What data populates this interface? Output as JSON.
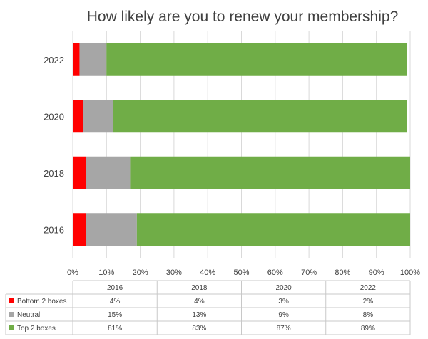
{
  "chart_data": {
    "type": "bar",
    "orientation": "horizontal",
    "stacked": true,
    "title": "How likely are you to renew your membership?",
    "categories": [
      "2016",
      "2018",
      "2020",
      "2022"
    ],
    "series": [
      {
        "name": "Bottom 2 boxes",
        "values": [
          4,
          4,
          3,
          2
        ],
        "labels": [
          "4%",
          "4%",
          "3%",
          "2%"
        ],
        "color": "#ff0000"
      },
      {
        "name": "Neutral",
        "values": [
          15,
          13,
          9,
          8
        ],
        "labels": [
          "15%",
          "13%",
          "9%",
          "8%"
        ],
        "color": "#a6a6a6"
      },
      {
        "name": "Top 2 boxes",
        "values": [
          81,
          83,
          87,
          89
        ],
        "labels": [
          "81%",
          "83%",
          "87%",
          "89%"
        ],
        "color": "#70ad47"
      }
    ],
    "xlim": [
      0,
      100
    ],
    "xticks": [
      "0%",
      "10%",
      "20%",
      "30%",
      "40%",
      "50%",
      "60%",
      "70%",
      "80%",
      "90%",
      "100%"
    ],
    "grid": true,
    "legend": "data-table-left"
  }
}
